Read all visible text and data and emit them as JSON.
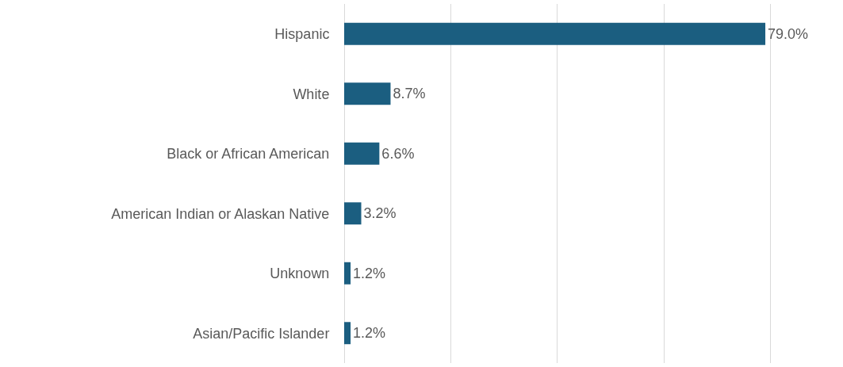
{
  "chart_data": {
    "type": "bar",
    "orientation": "horizontal",
    "categories": [
      "Hispanic",
      "White",
      "Black or African American",
      "American Indian or Alaskan Native",
      "Unknown",
      "Asian/Pacific Islander"
    ],
    "values": [
      79.0,
      8.7,
      6.6,
      3.2,
      1.2,
      1.2
    ],
    "value_labels": [
      "79.0%",
      "8.7%",
      "6.6%",
      "3.2%",
      "1.2%",
      "1.2%"
    ],
    "color": "#1b5e80",
    "grid": "x",
    "tick_labels": "y",
    "legend": false
  }
}
